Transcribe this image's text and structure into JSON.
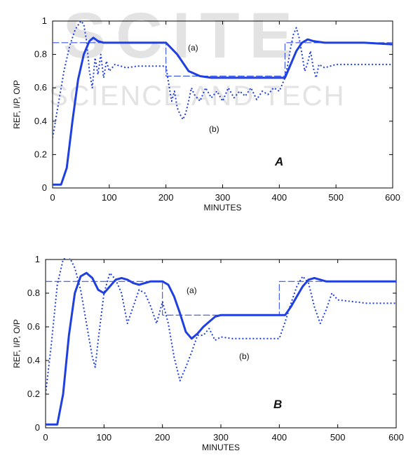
{
  "watermark": {
    "line1": "SCITE",
    "line2": "SCIENCE AND TECH"
  },
  "chart_data": [
    {
      "type": "line",
      "panel_label": "A",
      "xlabel": "MINUTES",
      "ylabel": "REF, I/P, O/P",
      "xlim": [
        0,
        600
      ],
      "ylim": [
        0,
        1
      ],
      "x_ticks": [
        "0",
        "100",
        "200",
        "300",
        "400",
        "500",
        "600"
      ],
      "y_ticks": [
        "0",
        "0.2",
        "0.4",
        "0.6",
        "0.8",
        "1"
      ],
      "annotations": [
        {
          "text": "(a)",
          "x": 225,
          "y": 0.86
        },
        {
          "text": "(b)",
          "x": 268,
          "y": 0.44
        }
      ],
      "series": [
        {
          "style": "dashed-thin",
          "x": [
            0,
            200,
            200,
            410,
            410,
            600
          ],
          "y": [
            0.87,
            0.87,
            0.67,
            0.67,
            0.87,
            0.87
          ]
        },
        {
          "style": "solid-thick",
          "x": [
            0,
            15,
            25,
            35,
            45,
            55,
            65,
            72,
            80,
            90,
            100,
            200,
            220,
            240,
            260,
            280,
            300,
            350,
            400,
            410,
            420,
            430,
            440,
            450,
            460,
            480,
            500,
            550,
            600
          ],
          "y": [
            0.02,
            0.02,
            0.12,
            0.4,
            0.65,
            0.8,
            0.88,
            0.9,
            0.88,
            0.87,
            0.87,
            0.87,
            0.8,
            0.7,
            0.67,
            0.66,
            0.66,
            0.66,
            0.66,
            0.66,
            0.74,
            0.82,
            0.87,
            0.89,
            0.88,
            0.87,
            0.87,
            0.87,
            0.86
          ]
        },
        {
          "style": "dotted",
          "x": [
            0,
            10,
            20,
            30,
            40,
            50,
            55,
            60,
            65,
            70,
            75,
            80,
            85,
            90,
            95,
            100,
            110,
            130,
            150,
            200,
            205,
            210,
            215,
            220,
            225,
            230,
            235,
            240,
            245,
            250,
            260,
            270,
            280,
            290,
            300,
            310,
            320,
            330,
            340,
            350,
            360,
            370,
            380,
            390,
            400,
            405,
            410,
            415,
            420,
            425,
            430,
            435,
            440,
            445,
            450,
            455,
            460,
            465,
            470,
            480,
            500,
            550,
            600
          ],
          "y": [
            0.3,
            0.5,
            0.7,
            0.85,
            0.95,
            1.0,
            0.98,
            0.88,
            0.7,
            0.6,
            0.78,
            0.68,
            0.8,
            0.66,
            0.76,
            0.7,
            0.74,
            0.72,
            0.73,
            0.73,
            0.62,
            0.52,
            0.58,
            0.48,
            0.44,
            0.41,
            0.45,
            0.52,
            0.6,
            0.56,
            0.52,
            0.6,
            0.54,
            0.58,
            0.52,
            0.6,
            0.54,
            0.58,
            0.55,
            0.6,
            0.53,
            0.58,
            0.56,
            0.6,
            0.58,
            0.62,
            0.66,
            0.74,
            0.84,
            0.92,
            0.96,
            0.9,
            0.8,
            0.7,
            0.75,
            0.82,
            0.72,
            0.66,
            0.74,
            0.72,
            0.74,
            0.74,
            0.74
          ]
        }
      ]
    },
    {
      "type": "line",
      "panel_label": "B",
      "xlabel": "MINUTES",
      "ylabel": "REF, I/P, O/P",
      "xlim": [
        0,
        600
      ],
      "ylim": [
        0,
        1
      ],
      "x_ticks": [
        "0",
        "100",
        "200",
        "300",
        "400",
        "500",
        "600"
      ],
      "y_ticks": [
        "0",
        "0.2",
        "0.4",
        "0.6",
        "0.8",
        "1"
      ],
      "annotations": [
        {
          "text": "(a)",
          "x": 240,
          "y": 0.84
        },
        {
          "text": "(b)",
          "x": 330,
          "y": 0.48
        }
      ],
      "series": [
        {
          "style": "dashed-thin",
          "x": [
            0,
            200,
            200,
            400,
            400,
            600
          ],
          "y": [
            0.87,
            0.87,
            0.67,
            0.67,
            0.87,
            0.87
          ]
        },
        {
          "style": "solid-thick",
          "x": [
            0,
            20,
            30,
            40,
            50,
            60,
            70,
            80,
            90,
            100,
            110,
            120,
            130,
            140,
            150,
            160,
            170,
            180,
            200,
            210,
            220,
            230,
            240,
            250,
            260,
            270,
            280,
            290,
            300,
            350,
            400,
            410,
            420,
            430,
            440,
            450,
            460,
            470,
            480,
            490,
            500,
            550,
            600
          ],
          "y": [
            0.02,
            0.02,
            0.2,
            0.55,
            0.8,
            0.9,
            0.92,
            0.89,
            0.82,
            0.8,
            0.84,
            0.88,
            0.89,
            0.88,
            0.86,
            0.85,
            0.86,
            0.87,
            0.87,
            0.85,
            0.78,
            0.68,
            0.57,
            0.53,
            0.56,
            0.6,
            0.63,
            0.66,
            0.67,
            0.67,
            0.67,
            0.67,
            0.72,
            0.78,
            0.84,
            0.88,
            0.89,
            0.88,
            0.87,
            0.87,
            0.87,
            0.87,
            0.87
          ]
        },
        {
          "style": "dotted",
          "x": [
            0,
            10,
            20,
            30,
            40,
            50,
            60,
            70,
            80,
            85,
            90,
            100,
            110,
            120,
            130,
            140,
            150,
            160,
            170,
            180,
            190,
            200,
            210,
            220,
            230,
            240,
            250,
            260,
            270,
            280,
            290,
            300,
            320,
            340,
            360,
            380,
            400,
            410,
            420,
            430,
            440,
            450,
            460,
            470,
            480,
            490,
            500,
            550,
            600
          ],
          "y": [
            0.2,
            0.5,
            0.85,
            1.0,
            1.02,
            0.95,
            0.82,
            0.62,
            0.42,
            0.36,
            0.52,
            0.8,
            0.92,
            0.88,
            0.8,
            0.62,
            0.72,
            0.82,
            0.8,
            0.72,
            0.62,
            0.75,
            0.62,
            0.42,
            0.28,
            0.36,
            0.45,
            0.55,
            0.55,
            0.59,
            0.52,
            0.54,
            0.53,
            0.53,
            0.53,
            0.53,
            0.53,
            0.63,
            0.74,
            0.84,
            0.9,
            0.86,
            0.72,
            0.62,
            0.7,
            0.8,
            0.76,
            0.74,
            0.74
          ]
        }
      ]
    }
  ]
}
